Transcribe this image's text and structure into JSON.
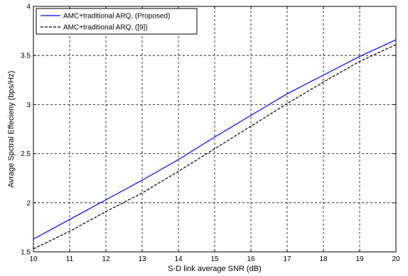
{
  "chart_data": {
    "type": "line",
    "title": "",
    "xlabel": "S-D link average SNR (dB)",
    "ylabel": "Avrage Spctral Effecieny (bps/Hz)",
    "xlim": [
      10,
      20
    ],
    "ylim": [
      1.5,
      4
    ],
    "xticks": [
      10,
      11,
      12,
      13,
      14,
      15,
      16,
      17,
      18,
      19,
      20
    ],
    "yticks": [
      1.5,
      2,
      2.5,
      3,
      3.5,
      4
    ],
    "xtick_labels": [
      "10",
      "11",
      "12",
      "13",
      "14",
      "15",
      "16",
      "17",
      "18",
      "19",
      "20"
    ],
    "ytick_labels": [
      "1.5",
      "2",
      "2.5",
      "3",
      "3.5",
      "4"
    ],
    "grid": true,
    "legend_position": "top-left",
    "x": [
      10,
      11,
      12,
      13,
      14,
      15,
      16,
      17,
      18,
      19,
      20
    ],
    "series": [
      {
        "name": "AMC+traditional ARQ, (Proposed)",
        "color": "#0000ff",
        "style": "solid",
        "values": [
          1.63,
          1.83,
          2.03,
          2.23,
          2.44,
          2.67,
          2.89,
          3.11,
          3.3,
          3.49,
          3.66
        ]
      },
      {
        "name": "AMC+traditional ARQ, ([9])",
        "color": "#000000",
        "style": "dashed",
        "values": [
          1.53,
          1.71,
          1.91,
          2.1,
          2.32,
          2.55,
          2.78,
          3.01,
          3.23,
          3.44,
          3.61
        ]
      }
    ]
  }
}
